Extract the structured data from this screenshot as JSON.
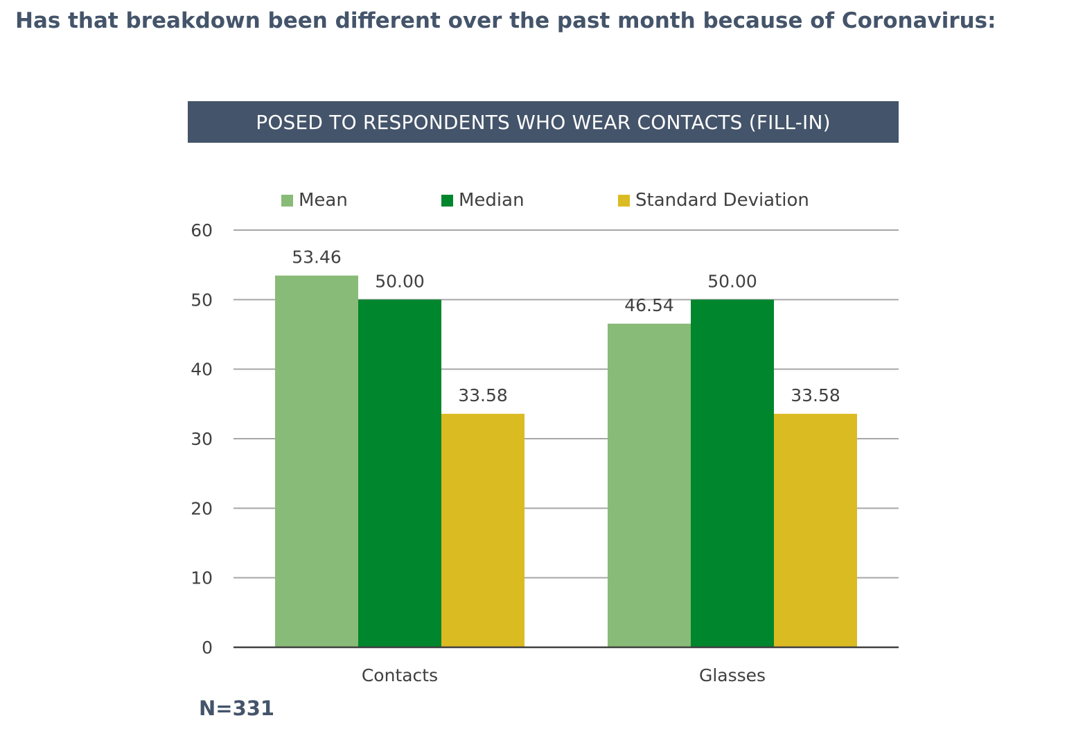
{
  "page": {
    "title": "Has that breakdown been different over the past month because of Coronavirus:",
    "banner": "POSED TO RESPONDENTS WHO WEAR CONTACTS (FILL-IN)",
    "sample_size": "N=331"
  },
  "chart_data": {
    "type": "bar",
    "categories": [
      "Contacts",
      "Glasses"
    ],
    "series": [
      {
        "name": "Mean",
        "values": [
          53.46,
          46.54
        ],
        "labels": [
          "53.46",
          "46.54"
        ],
        "color": "#88bb77"
      },
      {
        "name": "Median",
        "values": [
          50.0,
          50.0
        ],
        "labels": [
          "50.00",
          "50.00"
        ],
        "color": "#00862d"
      },
      {
        "name": "Standard Deviation",
        "values": [
          33.58,
          33.58
        ],
        "labels": [
          "33.58",
          "33.58"
        ],
        "color": "#dbbb22"
      }
    ],
    "ylim": [
      0,
      60
    ],
    "yticks": [
      0,
      10,
      20,
      30,
      40,
      50,
      60
    ],
    "grid": true,
    "legend_position": "top"
  }
}
